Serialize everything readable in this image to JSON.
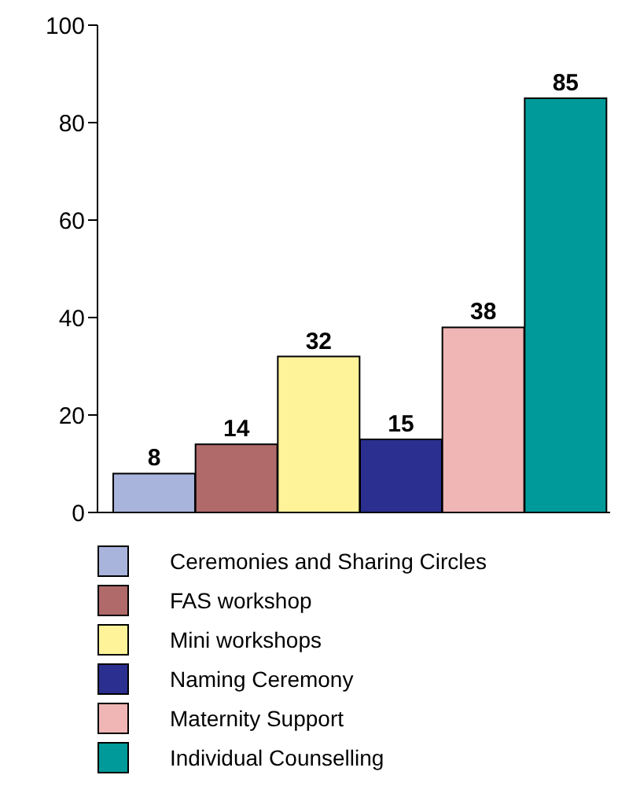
{
  "chart_data": {
    "type": "bar",
    "categories": [
      null,
      null,
      null,
      null,
      null,
      null
    ],
    "series": [
      {
        "name": "Ceremonies and Sharing Circles",
        "color": "#a9b4dc",
        "values": [
          8,
          null,
          null,
          null,
          null,
          null
        ]
      },
      {
        "name": "FAS workshop",
        "color": "#b06a6a",
        "values": [
          null,
          14,
          null,
          null,
          null,
          null
        ]
      },
      {
        "name": "Mini workshops",
        "color": "#fff39a",
        "values": [
          null,
          null,
          32,
          null,
          null,
          null
        ]
      },
      {
        "name": "Naming Ceremony",
        "color": "#2b2f8f",
        "values": [
          null,
          null,
          null,
          15,
          null,
          null
        ]
      },
      {
        "name": "Maternity Support",
        "color": "#f0b5b5",
        "values": [
          null,
          null,
          null,
          null,
          38,
          null
        ]
      },
      {
        "name": "Individual Counselling",
        "color": "#009a9a",
        "values": [
          null,
          null,
          null,
          null,
          null,
          85
        ]
      }
    ],
    "stacked": true,
    "ylim": [
      0,
      100
    ],
    "yticks": [
      0,
      20,
      40,
      60,
      80,
      100
    ],
    "data_labels": true,
    "legend": "bottom",
    "tick_labels": "y"
  }
}
